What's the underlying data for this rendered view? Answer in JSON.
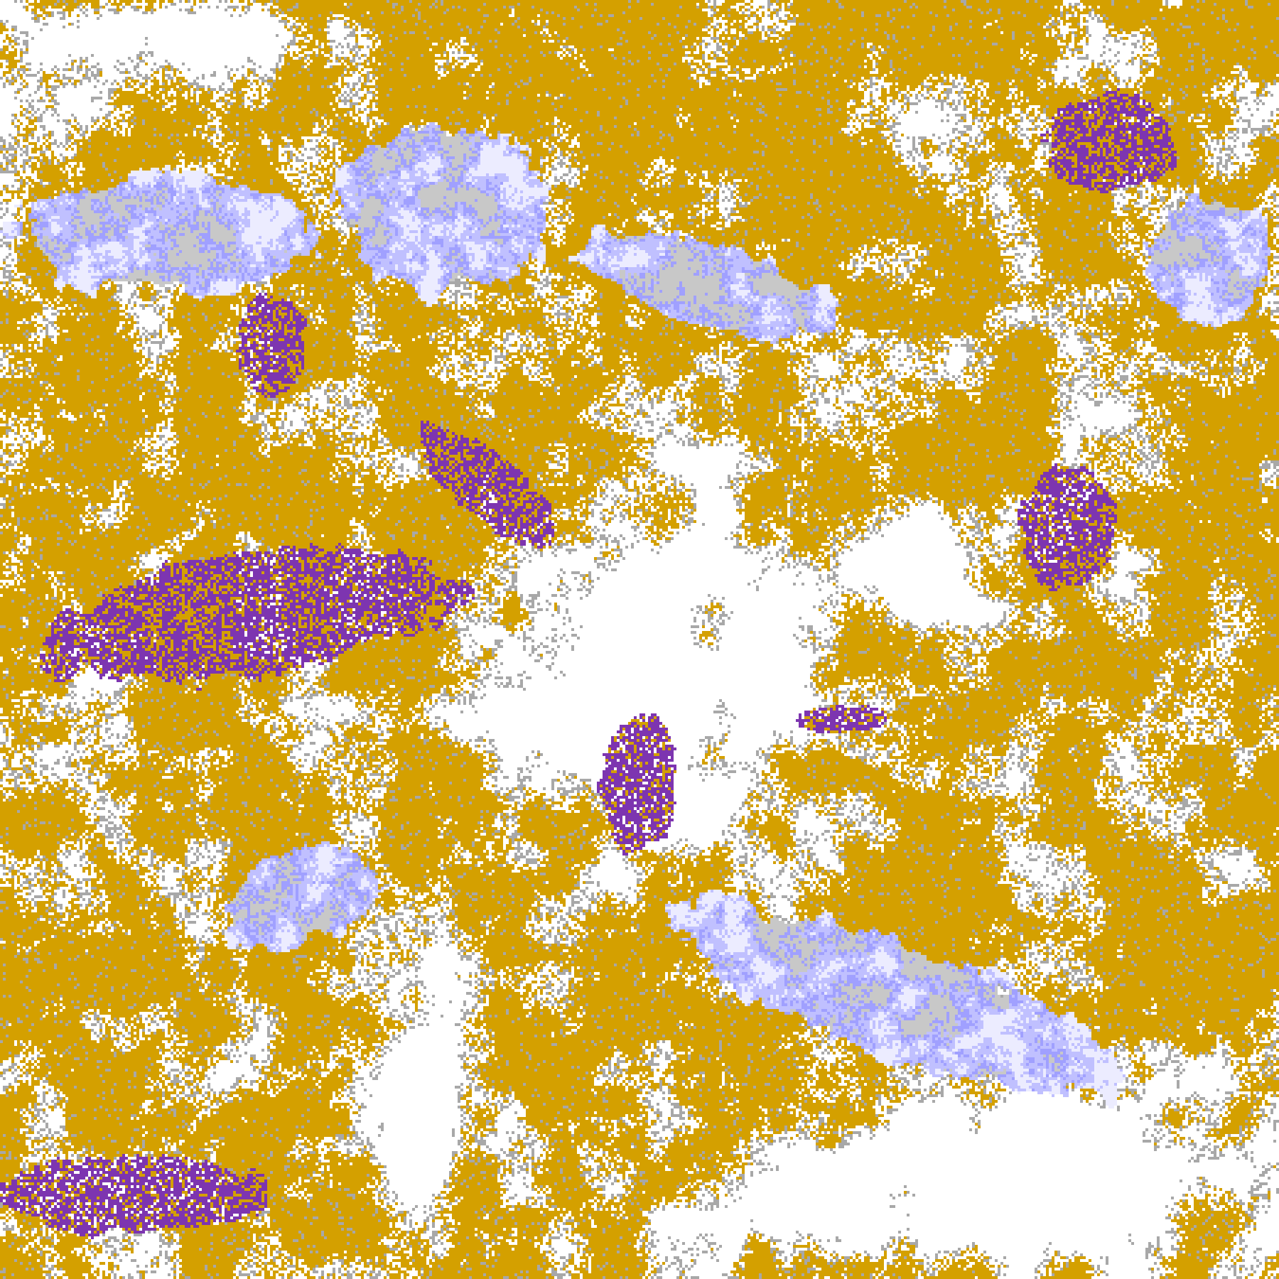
{
  "image": {
    "kind": "satellite cloud-type classification map",
    "palette": {
      "clear": "#ffffff",
      "low_cloud": "#d4a000",
      "thick_cloud": "#7d35b0",
      "high_thick": "#d050e0",
      "cirrus_light": "#c0c0ff",
      "cirrus": "#a0a0ff",
      "thin_gray": "#a8a8a8",
      "thin_light": "#c8c8c8",
      "very_high": "#ececff"
    }
  }
}
